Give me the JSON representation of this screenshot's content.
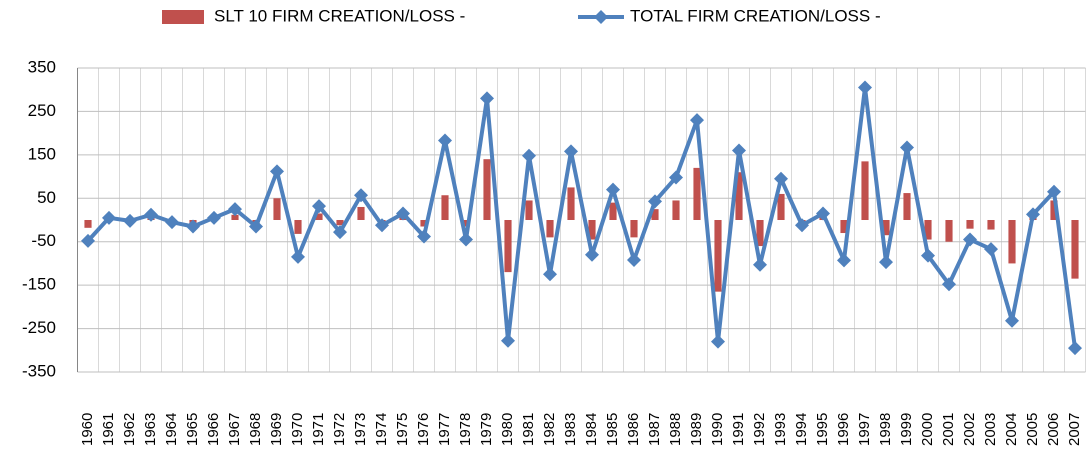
{
  "chart_data": {
    "type": "bar_line",
    "categories": [
      "1960",
      "1961",
      "1962",
      "1963",
      "1964",
      "1965",
      "1966",
      "1967",
      "1968",
      "1969",
      "1970",
      "1971",
      "1972",
      "1973",
      "1974",
      "1975",
      "1976",
      "1977",
      "1978",
      "1979",
      "1980",
      "1981",
      "1982",
      "1983",
      "1984",
      "1985",
      "1986",
      "1987",
      "1988",
      "1989",
      "1990",
      "1991",
      "1992",
      "1993",
      "1994",
      "1995",
      "1996",
      "1997",
      "1998",
      "1999",
      "2000",
      "2001",
      "2002",
      "2003",
      "2004",
      "2005",
      "2006",
      "2007"
    ],
    "series": [
      {
        "name": "SLT 10 FIRM CREATION/LOSS -",
        "type": "bar",
        "color": "#c0504d",
        "values": [
          -18,
          5,
          3,
          5,
          -5,
          -8,
          3,
          12,
          -10,
          50,
          -32,
          15,
          -12,
          30,
          -8,
          10,
          -15,
          57,
          -15,
          140,
          -120,
          45,
          -40,
          75,
          -45,
          40,
          -40,
          25,
          45,
          120,
          -165,
          110,
          -60,
          60,
          -10,
          10,
          -30,
          135,
          -35,
          62,
          -45,
          -50,
          -20,
          -22,
          -100,
          10,
          45,
          -135
        ]
      },
      {
        "name": "TOTAL FIRM CREATION/LOSS -",
        "type": "line",
        "color": "#4f81bd",
        "values": [
          -48,
          5,
          -2,
          12,
          -5,
          -15,
          5,
          25,
          -15,
          112,
          -85,
          32,
          -28,
          57,
          -12,
          15,
          -38,
          183,
          -45,
          280,
          -278,
          148,
          -125,
          158,
          -80,
          70,
          -92,
          43,
          98,
          230,
          -280,
          160,
          -103,
          95,
          -12,
          15,
          -93,
          305,
          -97,
          167,
          -82,
          -148,
          -45,
          -67,
          -232,
          13,
          65,
          -295
        ]
      }
    ],
    "ylim": [
      -350,
      350
    ],
    "yticks": [
      -350,
      -250,
      -150,
      -50,
      50,
      150,
      250,
      350
    ],
    "grid": true
  }
}
